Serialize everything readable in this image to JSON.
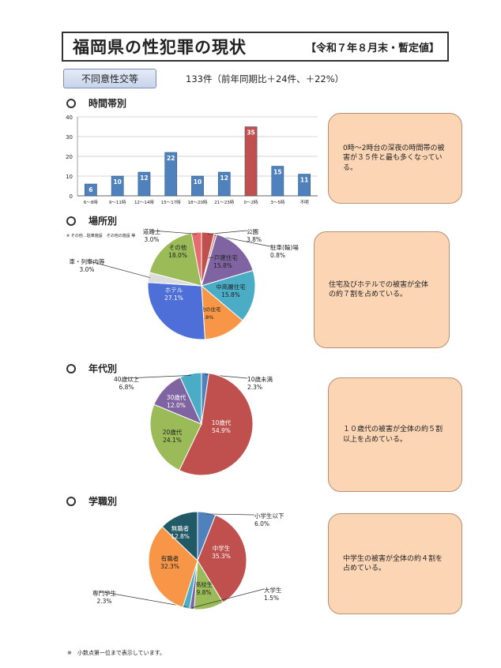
{
  "header": {
    "title": "福岡県の性犯罪の現状",
    "period": "【令和７年８月末・暫定値】"
  },
  "category": {
    "label": "不同意性交等",
    "count": "133件（前年同期比＋24件、＋22%）"
  },
  "sections": {
    "time": "時間帯別",
    "place": "場所別",
    "age": "年代別",
    "job": "学職別"
  },
  "notes": {
    "time": "0時～2時台の深夜の時間帯の被害が３５件と最も多くなっている。",
    "place": "住宅及びホテルでの被害が全体の約７割を占めている。",
    "age": "１０歳代の被害が全体の約５割以上を占めている。",
    "job": "中学生の被害が全体の約４割を占めている。"
  },
  "footnote": "※　小数点第一位まで表示しています。",
  "place_note": "※ その他…駐車施設　その他の施設 等",
  "chart_data": [
    {
      "type": "bar",
      "categories": [
        "6～8時",
        "9～11時",
        "12～14時",
        "15～17時",
        "18～20時",
        "21～23時",
        "0～2時",
        "3～5時",
        "不明"
      ],
      "values": [
        6,
        10,
        12,
        22,
        10,
        12,
        35,
        15,
        11
      ],
      "highlight_index": 6,
      "ylim": [
        0,
        40
      ],
      "yticks": [
        0,
        10,
        20,
        30,
        40
      ],
      "grid": true,
      "colors": {
        "bar": "#4f81bd",
        "highlight": "#c0504d"
      }
    },
    {
      "type": "pie",
      "slices": [
        {
          "label": "公園",
          "value": 3.8,
          "pct": "3.8%",
          "color": "#c0504d"
        },
        {
          "label": "駐車(輪)場",
          "value": 0.8,
          "pct": "0.8%",
          "color": "#d99694"
        },
        {
          "label": "一戸建住宅",
          "value": 15.8,
          "pct": "15.8%",
          "color": "#8064a2"
        },
        {
          "label": "中高層住宅",
          "value": 15.8,
          "pct": "15.8%",
          "color": "#4bacc6"
        },
        {
          "label": "その他の住宅",
          "value": 12.8,
          "pct": "12.8%",
          "color": "#f79646"
        },
        {
          "label": "ホテル",
          "value": 27.1,
          "pct": "27.1%",
          "color": "#4f6fd8"
        },
        {
          "label": "車・列車内等",
          "value": 3.0,
          "pct": "3.0%",
          "color": "#dcdcdc"
        },
        {
          "label": "その他",
          "value": 18.0,
          "pct": "18.0%",
          "color": "#9bbb59"
        },
        {
          "label": "道路上",
          "value": 3.0,
          "pct": "3.0%",
          "color": "#e46c6c"
        }
      ]
    },
    {
      "type": "pie",
      "slices": [
        {
          "label": "10歳未満",
          "value": 2.3,
          "pct": "2.3%",
          "color": "#4f81bd"
        },
        {
          "label": "10歳代",
          "value": 54.9,
          "pct": "54.9%",
          "color": "#c0504d"
        },
        {
          "label": "20歳代",
          "value": 24.1,
          "pct": "24.1%",
          "color": "#9bbb59"
        },
        {
          "label": "30歳代",
          "value": 12.0,
          "pct": "12.0%",
          "color": "#8064a2"
        },
        {
          "label": "40歳以上",
          "value": 6.8,
          "pct": "6.8%",
          "color": "#4bacc6"
        }
      ]
    },
    {
      "type": "pie",
      "slices": [
        {
          "label": "小学生以下",
          "value": 6.0,
          "pct": "6.0%",
          "color": "#4f81bd"
        },
        {
          "label": "中学生",
          "value": 35.3,
          "pct": "35.3%",
          "color": "#c0504d"
        },
        {
          "label": "高校生",
          "value": 9.8,
          "pct": "9.8%",
          "color": "#9bbb59"
        },
        {
          "label": "大学生",
          "value": 1.5,
          "pct": "1.5%",
          "color": "#8064a2"
        },
        {
          "label": "専門学生",
          "value": 2.3,
          "pct": "2.3%",
          "color": "#4bacc6"
        },
        {
          "label": "有職者",
          "value": 32.3,
          "pct": "32.3%",
          "color": "#f79646"
        },
        {
          "label": "無職者",
          "value": 12.8,
          "pct": "12.8%",
          "color": "#215967"
        }
      ]
    }
  ]
}
